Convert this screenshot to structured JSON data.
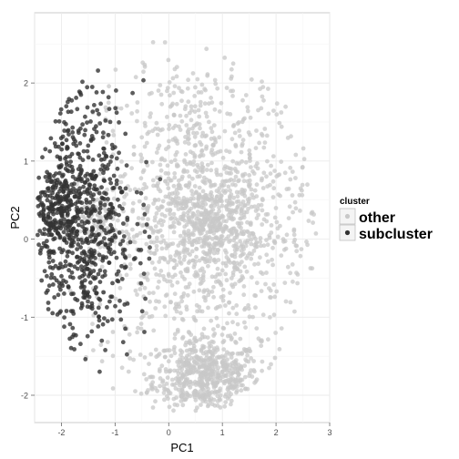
{
  "chart_data": {
    "type": "scatter",
    "xlabel": "PC1",
    "ylabel": "PC2",
    "xlim": [
      -2.5,
      3.0
    ],
    "ylim": [
      -2.35,
      2.9
    ],
    "x_ticks": [
      -2,
      -1,
      0,
      1,
      2,
      3
    ],
    "y_ticks": [
      -2,
      -1,
      0,
      1,
      2
    ],
    "grid": true,
    "legend": {
      "title": "cluster",
      "placement": "right",
      "entries": [
        {
          "label": "other",
          "color": "#c8c8c8"
        },
        {
          "label": "subcluster",
          "color": "#333333"
        }
      ]
    },
    "series": [
      {
        "name": "other",
        "color": "#c8c8c8",
        "clusters": [
          {
            "cx": 0.7,
            "cy": -1.75,
            "sx": 0.5,
            "sy": 0.22,
            "n": 550
          },
          {
            "cx": 0.75,
            "cy": 0.2,
            "sx": 0.45,
            "sy": 0.3,
            "n": 350
          },
          {
            "cx": -1.35,
            "cy": 0.3,
            "sx": 0.2,
            "sy": 0.2,
            "n": 90
          },
          {
            "cx": 0.6,
            "cy": 0.3,
            "sx": 1.0,
            "sy": 1.05,
            "n": 1200
          }
        ],
        "envelope": {
          "cx": 0.25,
          "cy": 0.15,
          "rx": 2.5,
          "ry": 2.45
        }
      },
      {
        "name": "subcluster",
        "color": "#333333",
        "clusters": [
          {
            "cx": -1.65,
            "cy": 0.25,
            "sx": 0.5,
            "sy": 0.85,
            "n": 700
          },
          {
            "cx": -2.1,
            "cy": 0.35,
            "sx": 0.25,
            "sy": 0.3,
            "n": 150
          }
        ],
        "envelope": {
          "cx": -0.9,
          "cy": 0.2,
          "rx": 1.6,
          "ry": 2.05
        },
        "x_max": -0.15
      }
    ]
  }
}
